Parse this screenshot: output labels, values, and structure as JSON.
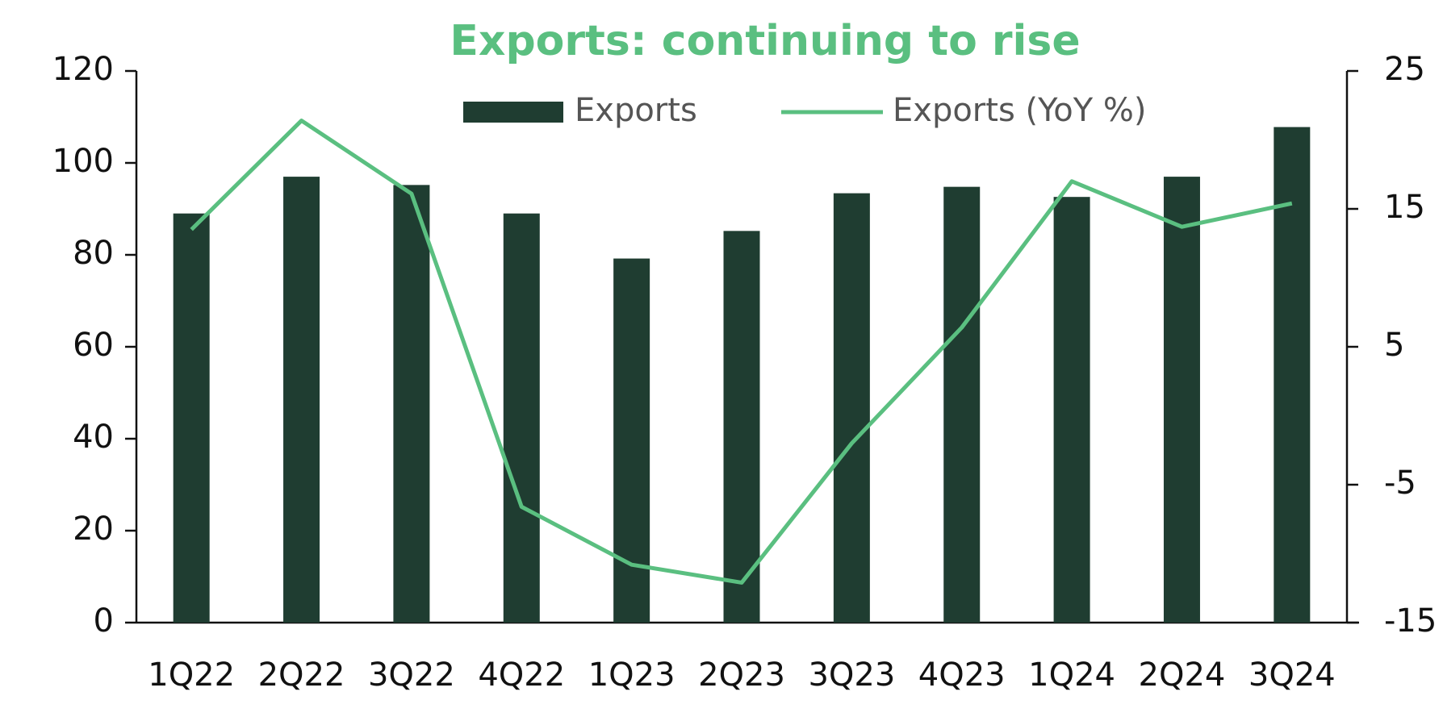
{
  "chart_data": {
    "type": "bar",
    "title": "Exports: continuing to rise",
    "categories": [
      "1Q22",
      "2Q22",
      "3Q22",
      "4Q22",
      "1Q23",
      "2Q23",
      "3Q23",
      "4Q23",
      "1Q24",
      "2Q24",
      "3Q24"
    ],
    "series": [
      {
        "name": "Exports",
        "type": "bar",
        "color": "#1f3d31",
        "values": [
          89,
          97,
          95.2,
          89,
          79.2,
          85.2,
          93.4,
          94.8,
          92.6,
          97,
          107.8
        ]
      },
      {
        "name": "Exports (YoY %)",
        "type": "line",
        "axis": "y2",
        "color": "#5abf80",
        "values": [
          13.5,
          21.4,
          16.1,
          -6.6,
          -10.8,
          -12.1,
          -2,
          6.4,
          17,
          13.7,
          15.4
        ]
      }
    ],
    "ylim": [
      0,
      120
    ],
    "yticks": [
      0,
      20,
      40,
      60,
      80,
      100,
      120
    ],
    "y2lim": [
      -15,
      25
    ],
    "y2ticks": [
      -15,
      -5,
      5,
      15,
      25
    ],
    "grid": false,
    "legend": "top"
  }
}
